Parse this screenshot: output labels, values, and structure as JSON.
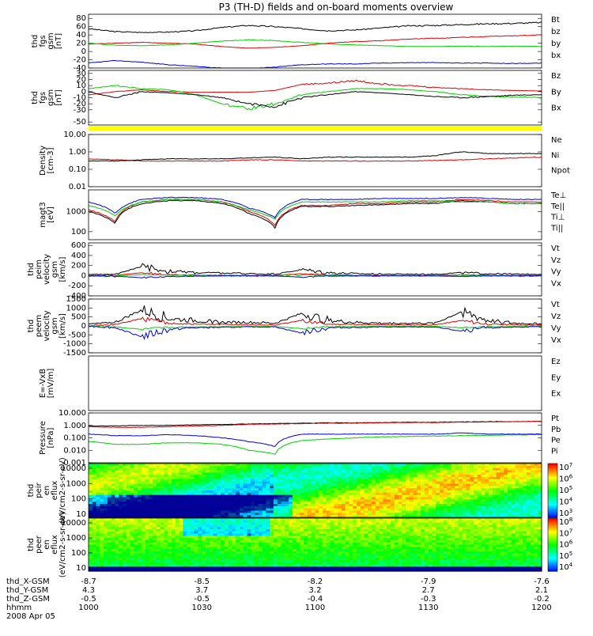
{
  "title": "P3 (TH-D) fields and on-board moments overview",
  "colors": {
    "black": "#000000",
    "red": "#e00000",
    "green": "#00d000",
    "blue": "#0000e0",
    "yellow": "#ffff00"
  },
  "chart_data": [
    {
      "type": "line",
      "ylabel": [
        "thd",
        "fgs",
        "gsm",
        "[nT]"
      ],
      "yticks": [
        "-40",
        "-20",
        "0",
        "20",
        "40",
        "60",
        "80"
      ],
      "ylim": [
        -40,
        90
      ],
      "series": [
        {
          "name": "Bt",
          "color": "black",
          "values": [
            55,
            48,
            46,
            47,
            50,
            58,
            63,
            60,
            55,
            50,
            52,
            57,
            62,
            63,
            65,
            67,
            68,
            70
          ]
        },
        {
          "name": "bz",
          "color": "red",
          "values": [
            18,
            20,
            22,
            20,
            18,
            12,
            8,
            10,
            14,
            20,
            24,
            26,
            30,
            32,
            34,
            36,
            38,
            40
          ]
        },
        {
          "name": "by",
          "color": "green",
          "values": [
            20,
            15,
            14,
            16,
            20,
            25,
            28,
            26,
            22,
            18,
            16,
            14,
            12,
            12,
            13,
            12,
            13,
            12
          ]
        },
        {
          "name": "bx",
          "color": "blue",
          "values": [
            -28,
            -22,
            -26,
            -32,
            -36,
            -40,
            -42,
            -38,
            -32,
            -30,
            -30,
            -28,
            -27,
            -27,
            -28,
            -28,
            -29,
            -28
          ]
        }
      ]
    },
    {
      "type": "line",
      "ylabel": [
        "thd",
        "fgs",
        "gsm",
        "[nT]"
      ],
      "yticks": [
        "-50",
        "-30",
        "-20",
        "-10",
        "0",
        "10",
        "20",
        "30"
      ],
      "ylim": [
        -55,
        35
      ],
      "series": [
        {
          "name": "Bz",
          "color": "red",
          "values": [
            -5,
            0,
            3,
            0,
            -1,
            -1,
            -1,
            2,
            12,
            14,
            18,
            13,
            10,
            7,
            5,
            3,
            2,
            1
          ]
        },
        {
          "name": "By",
          "color": "green",
          "values": [
            5,
            10,
            5,
            3,
            -5,
            -20,
            -28,
            -20,
            -5,
            0,
            5,
            5,
            3,
            0,
            -5,
            -8,
            -9,
            -10
          ]
        },
        {
          "name": "Bx",
          "color": "black",
          "values": [
            0,
            -10,
            0,
            -2,
            -5,
            -10,
            -20,
            -25,
            -10,
            -5,
            0,
            -2,
            -5,
            -8,
            -10,
            -8,
            -6,
            -5
          ]
        }
      ]
    },
    {
      "type": "line",
      "log": true,
      "ylabel": [
        "Density",
        "[cm-3]"
      ],
      "yticks": [
        "0.01",
        "0.10",
        "1.00",
        "10.00"
      ],
      "ylim": [
        0.01,
        10
      ],
      "series": [
        {
          "name": "Ne",
          "color": "red",
          "values": [
            0.4,
            0.35,
            0.3,
            0.3,
            0.3,
            0.3,
            0.35,
            0.35,
            0.3,
            0.3,
            0.3,
            0.3,
            0.3,
            0.32,
            0.35,
            0.4,
            0.45,
            0.5
          ]
        },
        {
          "name": "Ni",
          "color": "black",
          "values": [
            0.3,
            0.3,
            0.35,
            0.4,
            0.4,
            0.4,
            0.45,
            0.5,
            0.4,
            0.5,
            0.5,
            0.5,
            0.5,
            0.6,
            1.0,
            0.8,
            0.8,
            0.8
          ]
        },
        {
          "name": "Npot",
          "color": "blue",
          "values": []
        }
      ]
    },
    {
      "type": "line",
      "log": true,
      "ylabel": [
        "magt3",
        "[eV]"
      ],
      "yticks": [
        "100",
        "1000"
      ],
      "ylim": [
        40,
        12000
      ],
      "series": [
        {
          "name": "Te⊥",
          "color": "red",
          "values": [
            1200,
            300,
            3000,
            4000,
            4000,
            3000,
            1000,
            200,
            2000,
            2000,
            2500,
            2500,
            3000,
            3000,
            4000,
            3500,
            3000,
            3000
          ]
        },
        {
          "name": "Te||",
          "color": "black",
          "values": [
            1000,
            250,
            2500,
            3500,
            3500,
            2500,
            800,
            150,
            1800,
            1800,
            2000,
            2200,
            2500,
            2500,
            3500,
            3000,
            2500,
            2500
          ]
        },
        {
          "name": "Ti⊥",
          "color": "blue",
          "values": [
            3000,
            800,
            4000,
            5000,
            5000,
            4000,
            1500,
            500,
            4000,
            4000,
            4000,
            4500,
            4500,
            4500,
            5000,
            4500,
            4000,
            4000
          ]
        },
        {
          "name": "Ti||",
          "color": "green",
          "values": [
            2000,
            600,
            3000,
            4000,
            4000,
            3000,
            1200,
            400,
            3000,
            3000,
            3000,
            3000,
            3500,
            3500,
            3000,
            3000,
            2500,
            2500
          ]
        }
      ]
    },
    {
      "type": "line",
      "ylabel": [
        "thd",
        "peim",
        "velocity",
        "gsm",
        "[km/s]"
      ],
      "yticks": [
        "-400",
        "-200",
        "0",
        "200",
        "400",
        "600"
      ],
      "ylim": [
        -400,
        650
      ],
      "series": [
        {
          "name": "Vt",
          "color": "black",
          "values": [
            20,
            30,
            180,
            90,
            60,
            50,
            40,
            30,
            120,
            60,
            40,
            30,
            30,
            30,
            60,
            40,
            30,
            30
          ]
        },
        {
          "name": "Vz",
          "color": "red",
          "values": [
            0,
            5,
            60,
            20,
            10,
            5,
            5,
            5,
            40,
            15,
            5,
            5,
            5,
            5,
            15,
            5,
            5,
            5
          ]
        },
        {
          "name": "Vy",
          "color": "green",
          "values": [
            0,
            -5,
            20,
            10,
            0,
            0,
            0,
            0,
            20,
            5,
            0,
            0,
            0,
            0,
            5,
            0,
            0,
            0
          ]
        },
        {
          "name": "Vx",
          "color": "blue",
          "values": [
            0,
            -10,
            -40,
            -20,
            -10,
            -5,
            -5,
            -5,
            -30,
            -10,
            -5,
            -5,
            -5,
            -5,
            -15,
            -5,
            -5,
            -5
          ]
        }
      ]
    },
    {
      "type": "line",
      "ylabel": [
        "thd",
        "peem",
        "velocity",
        "gsm",
        "[km/s]"
      ],
      "yticks": [
        "-1500",
        "-1000",
        "-500",
        "0",
        "500",
        "1000",
        "1500"
      ],
      "ylim": [
        -1500,
        1500
      ],
      "series": [
        {
          "name": "Vt",
          "color": "black",
          "values": [
            100,
            200,
            900,
            400,
            300,
            200,
            200,
            150,
            700,
            300,
            200,
            150,
            150,
            150,
            800,
            300,
            150,
            120
          ]
        },
        {
          "name": "Vz",
          "color": "red",
          "values": [
            0,
            80,
            400,
            150,
            100,
            80,
            60,
            50,
            300,
            100,
            80,
            60,
            60,
            60,
            300,
            100,
            60,
            50
          ]
        },
        {
          "name": "Vy",
          "color": "green",
          "values": [
            0,
            -50,
            -200,
            -100,
            -50,
            -40,
            -30,
            -30,
            -150,
            -50,
            -40,
            -30,
            -30,
            -30,
            -100,
            -50,
            -30,
            -30
          ]
        },
        {
          "name": "Vx",
          "color": "blue",
          "values": [
            0,
            -100,
            -600,
            -200,
            -100,
            -80,
            -60,
            -50,
            -400,
            -100,
            -80,
            -60,
            -60,
            -60,
            -300,
            -100,
            -60,
            -50
          ]
        }
      ]
    },
    {
      "type": "line",
      "ylabel": [
        "E=-VxB",
        "[mV/m]"
      ],
      "yticks": [],
      "series": [
        {
          "name": "Ez",
          "color": "red",
          "values": []
        },
        {
          "name": "Ey",
          "color": "green",
          "values": []
        },
        {
          "name": "Ex",
          "color": "blue",
          "values": []
        }
      ]
    },
    {
      "type": "line",
      "log": true,
      "ylabel": [
        "Pressure",
        "[nPa]"
      ],
      "yticks": [
        "0.001",
        "0.010",
        "0.100",
        "1.000",
        "10.000"
      ],
      "ylim": [
        0.001,
        10
      ],
      "series": [
        {
          "name": "Pt",
          "color": "black",
          "values": [
            0.9,
            0.9,
            1.0,
            1.0,
            1.1,
            1.2,
            1.3,
            1.4,
            1.5,
            1.6,
            1.6,
            1.7,
            1.8,
            1.8,
            1.9,
            2.0,
            2.0,
            2.1
          ]
        },
        {
          "name": "Pb",
          "color": "red",
          "values": [
            0.8,
            0.7,
            0.7,
            0.8,
            0.9,
            1.0,
            1.2,
            1.3,
            1.4,
            1.5,
            1.5,
            1.6,
            1.7,
            1.7,
            1.8,
            1.9,
            2.0,
            2.1
          ]
        },
        {
          "name": "Pe",
          "color": "green",
          "values": [
            0.05,
            0.03,
            0.03,
            0.04,
            0.04,
            0.03,
            0.01,
            0.005,
            0.06,
            0.08,
            0.1,
            0.12,
            0.13,
            0.14,
            0.15,
            0.16,
            0.17,
            0.18
          ]
        },
        {
          "name": "Pi",
          "color": "blue",
          "values": [
            0.2,
            0.15,
            0.15,
            0.18,
            0.15,
            0.1,
            0.05,
            0.02,
            0.2,
            0.2,
            0.2,
            0.2,
            0.2,
            0.2,
            0.25,
            0.2,
            0.2,
            0.2
          ]
        }
      ]
    },
    {
      "type": "heatmap",
      "ylabel": [
        "thd",
        "peir",
        "en",
        "eflux",
        "(eV/cm2-s-sr-eV)"
      ],
      "yticks": [
        "10",
        "100",
        "1000",
        "10000"
      ],
      "colorbar": {
        "min_exp": 3,
        "max_exp": 7,
        "labels": [
          "10^7",
          "10^6",
          "10^5",
          "10^4",
          "10^3"
        ]
      }
    },
    {
      "type": "heatmap",
      "ylabel": [
        "thd",
        "peer",
        "en",
        "eflux",
        "(eV/cm2-s-sr-eV)"
      ],
      "yticks": [
        "10",
        "100",
        "1000",
        "10000"
      ],
      "colorbar": {
        "min_exp": 4,
        "max_exp": 8,
        "labels": [
          "10^8",
          "10^7",
          "10^6",
          "10^5",
          "10^4"
        ]
      }
    }
  ],
  "xaxis": {
    "rows": [
      {
        "label": "thd_X-GSM",
        "values": [
          "-8.7",
          "-8.5",
          "-8.2",
          "-7.9",
          "-7.6"
        ]
      },
      {
        "label": "thd_Y-GSM",
        "values": [
          "4.3",
          "3.7",
          "3.2",
          "2.7",
          "2.1"
        ]
      },
      {
        "label": "thd_Z-GSM",
        "values": [
          "-0.5",
          "-0.5",
          "-0.4",
          "-0.3",
          "-0.2"
        ]
      },
      {
        "label": "hhmm",
        "values": [
          "1000",
          "1030",
          "1100",
          "1130",
          "1200"
        ]
      }
    ],
    "date": "2008 Apr 05"
  }
}
